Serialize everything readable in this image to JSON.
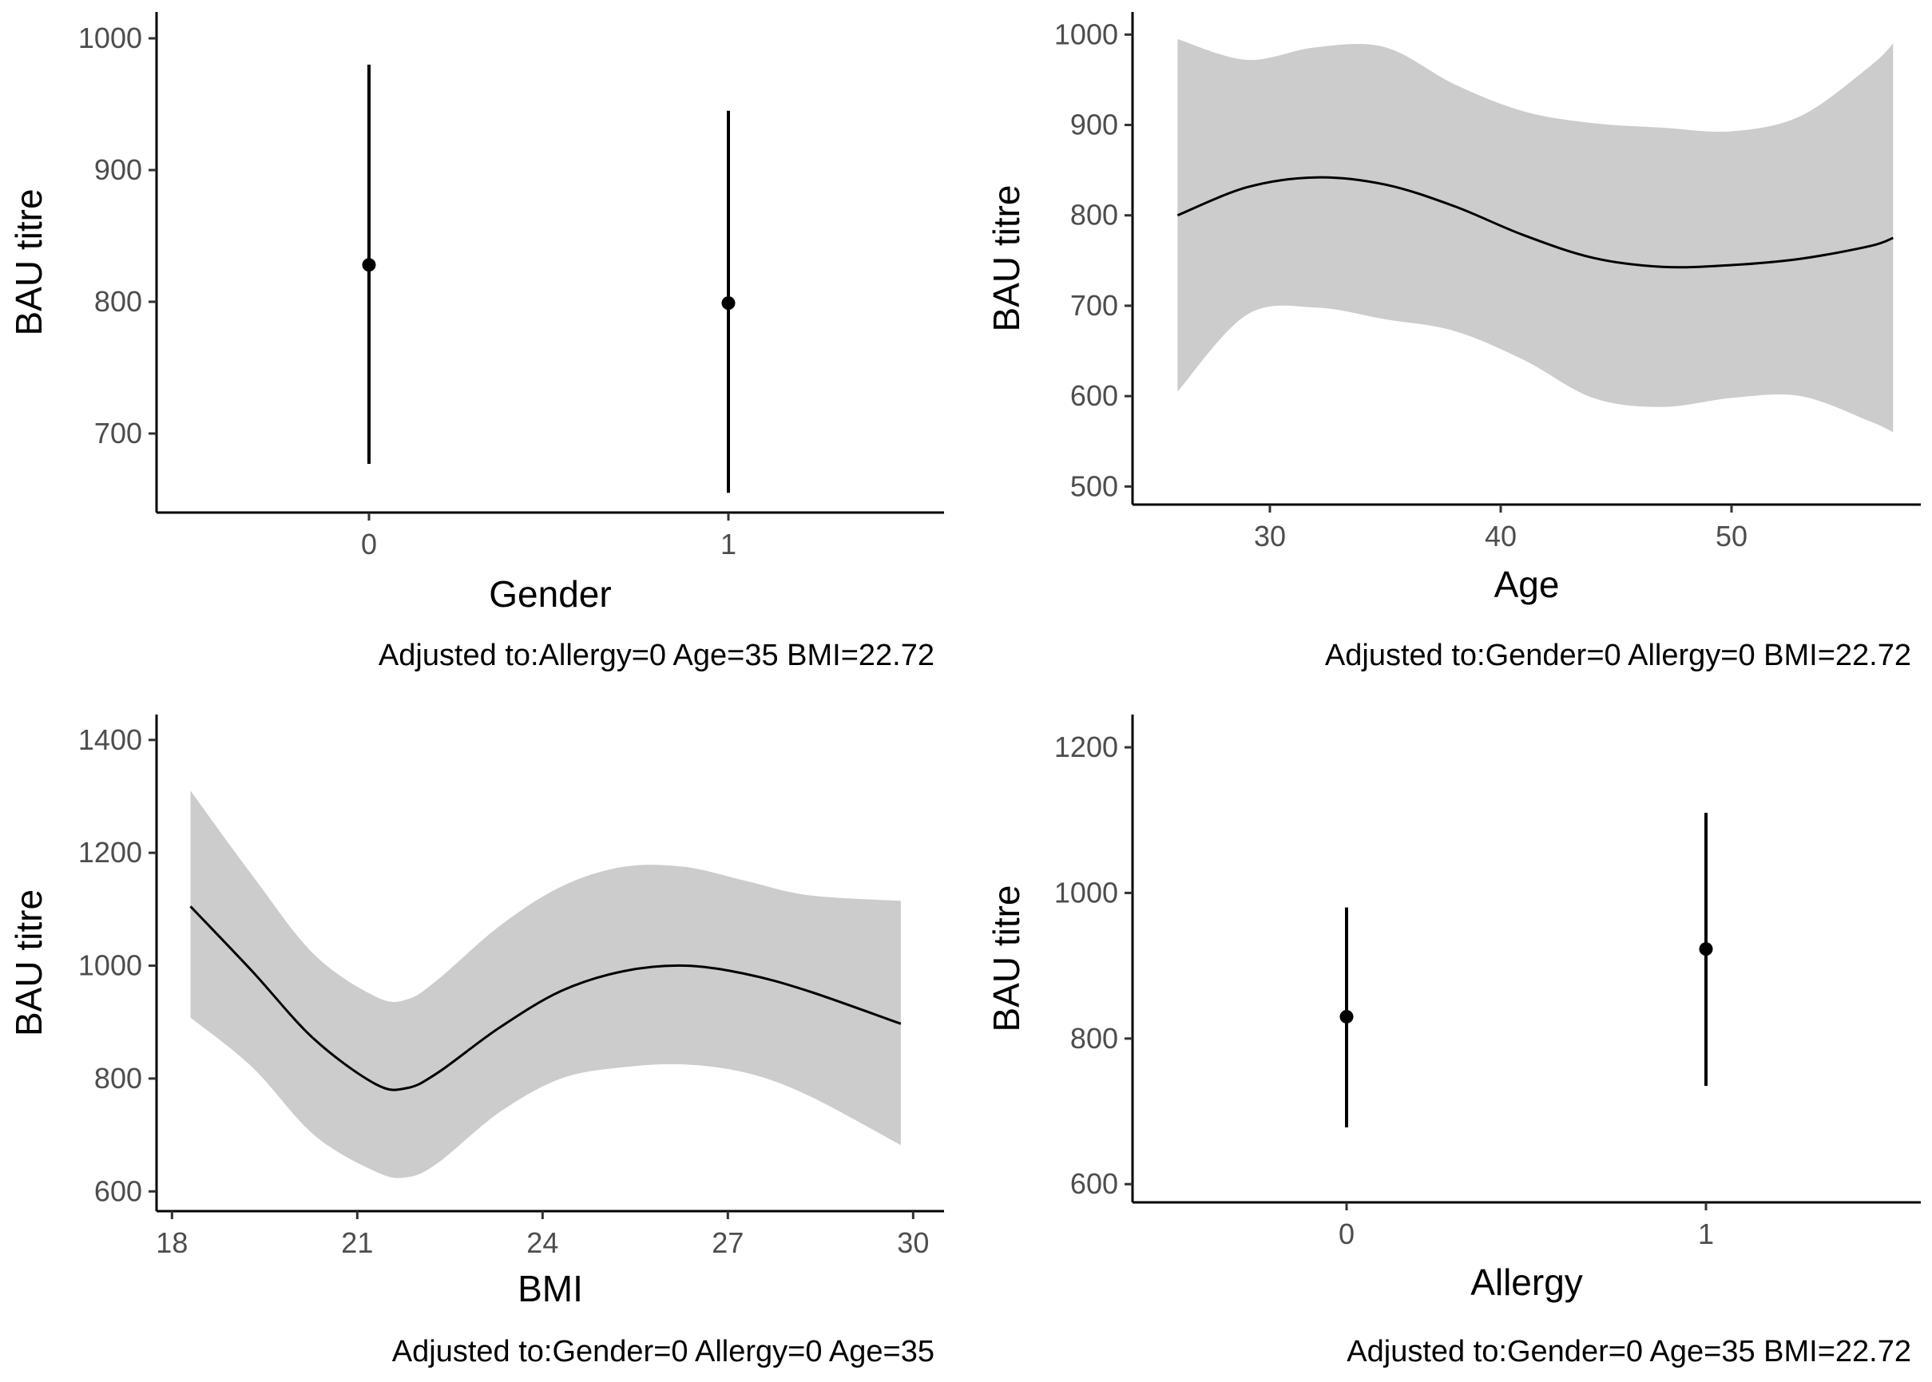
{
  "chart_data": [
    {
      "type": "scatter",
      "panel": "top-left",
      "xlabel": "Gender",
      "ylabel": "BAU titre",
      "caption": "Adjusted to:Allergy=0 Age=35 BMI=22.72",
      "categories": [
        "0",
        "1"
      ],
      "estimate": [
        828,
        799
      ],
      "lower": [
        677,
        655
      ],
      "upper": [
        980,
        945
      ],
      "ylim": [
        640,
        1020
      ],
      "yticks": [
        700,
        800,
        900,
        1000
      ]
    },
    {
      "type": "area",
      "panel": "top-right",
      "xlabel": "Age",
      "ylabel": "BAU titre",
      "caption": "Adjusted to:Gender=0 Allergy=0 BMI=22.72",
      "x": [
        26,
        29,
        32,
        35,
        38,
        41,
        44,
        47,
        50,
        53,
        56,
        57
      ],
      "y": [
        800,
        831,
        842,
        834,
        810,
        778,
        753,
        743,
        745,
        752,
        766,
        775
      ],
      "lower": [
        605,
        690,
        698,
        685,
        672,
        640,
        598,
        588,
        598,
        600,
        572,
        560
      ],
      "upper": [
        995,
        972,
        986,
        986,
        945,
        915,
        902,
        897,
        893,
        910,
        965,
        990
      ],
      "xlim": [
        24.05,
        58.2
      ],
      "ylim": [
        480,
        1025
      ],
      "xticks": [
        30,
        40,
        50
      ],
      "yticks": [
        500,
        600,
        700,
        800,
        900,
        1000
      ]
    },
    {
      "type": "area",
      "panel": "bottom-left",
      "xlabel": "BMI",
      "ylabel": "BAU titre",
      "caption": "Adjusted to:Gender=0 Allergy=0 Age=35",
      "x": [
        18.3,
        19.3,
        20.3,
        21.3,
        21.8,
        22.3,
        23.3,
        24.3,
        25.3,
        26.3,
        27.3,
        28.3,
        29.8
      ],
      "y": [
        1105,
        990,
        870,
        790,
        783,
        810,
        890,
        955,
        990,
        1000,
        985,
        955,
        897
      ],
      "lower": [
        908,
        820,
        700,
        635,
        625,
        650,
        740,
        800,
        820,
        825,
        810,
        770,
        682
      ],
      "upper": [
        1310,
        1160,
        1020,
        945,
        940,
        975,
        1070,
        1140,
        1175,
        1175,
        1150,
        1125,
        1115
      ],
      "xlim": [
        17.75,
        30.5
      ],
      "ylim": [
        565,
        1445
      ],
      "xticks": [
        18,
        21,
        24,
        27,
        30
      ],
      "yticks": [
        600,
        800,
        1000,
        1200,
        1400
      ]
    },
    {
      "type": "scatter",
      "panel": "bottom-right",
      "xlabel": "Allergy",
      "ylabel": "BAU titre",
      "caption": "Adjusted to:Gender=0 Age=35 BMI=22.72",
      "categories": [
        "0",
        "1"
      ],
      "estimate": [
        830,
        923
      ],
      "lower": [
        678,
        735
      ],
      "upper": [
        980,
        1110
      ],
      "ylim": [
        575,
        1245
      ],
      "yticks": [
        600,
        800,
        1000,
        1200
      ]
    }
  ]
}
